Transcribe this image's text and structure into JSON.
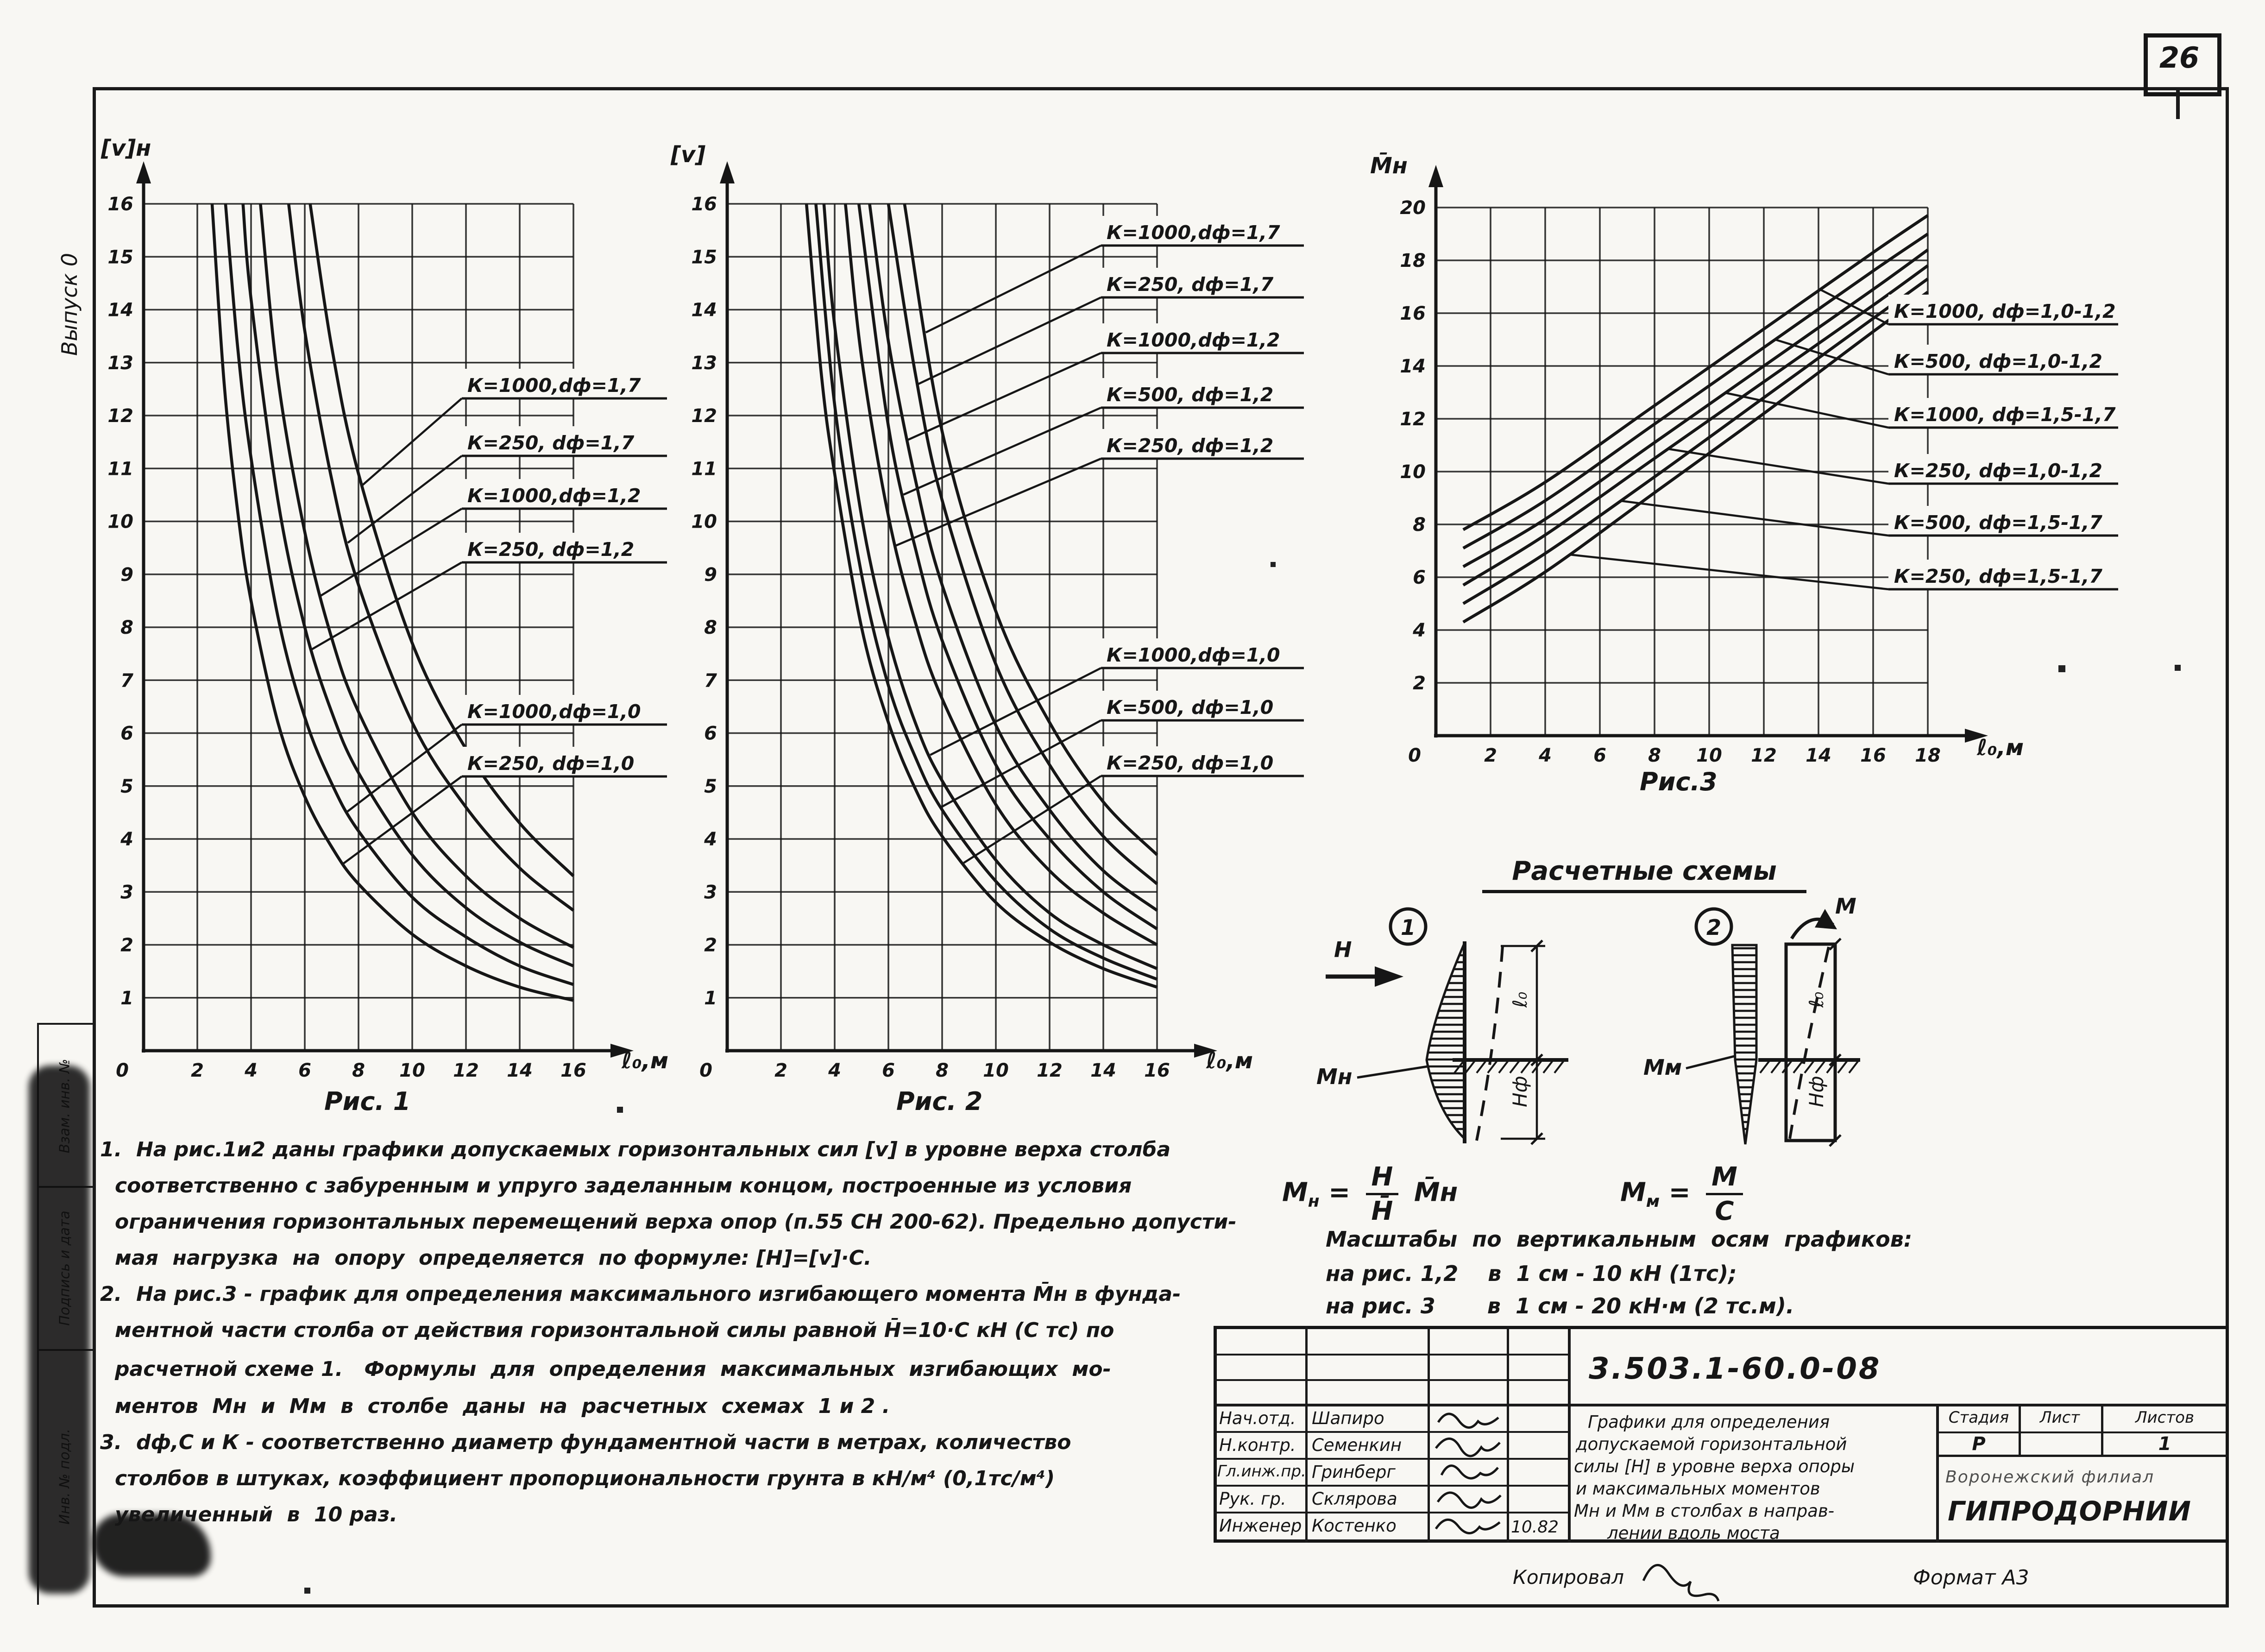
{
  "page": {
    "number": "26",
    "side_text": "Выпуск 0",
    "margin_labels": [
      "Взам. инв. №",
      "Подпись и дата",
      "Инв. № подл."
    ],
    "paper_color": "#f8f7f3",
    "ink_color": "#161616"
  },
  "chart_data": [
    {
      "id": "fig1",
      "type": "line",
      "caption": "Рис. 1",
      "ylabel": "[v]н",
      "xlabel": "ℓ₀,м",
      "xlim": [
        0,
        16
      ],
      "ylim": [
        0,
        16
      ],
      "xtick_step": 2,
      "ytick_step": 1,
      "grid": "on",
      "series": [
        {
          "name": "К=250, dф=1,0",
          "points": [
            [
              2.55,
              16
            ],
            [
              3,
              12.6
            ],
            [
              3.5,
              10.2
            ],
            [
              4,
              8.5
            ],
            [
              5,
              6.2
            ],
            [
              6,
              4.8
            ],
            [
              7,
              3.85
            ],
            [
              8,
              3.15
            ],
            [
              10,
              2.2
            ],
            [
              12,
              1.6
            ],
            [
              14,
              1.2
            ],
            [
              16,
              0.95
            ]
          ]
        },
        {
          "name": "К=1000, dф=1,0",
          "points": [
            [
              3.05,
              16
            ],
            [
              3.5,
              13.3
            ],
            [
              4,
              11.2
            ],
            [
              5,
              8.2
            ],
            [
              6,
              6.3
            ],
            [
              7,
              5.05
            ],
            [
              8,
              4.15
            ],
            [
              10,
              2.9
            ],
            [
              12,
              2.15
            ],
            [
              14,
              1.6
            ],
            [
              16,
              1.25
            ]
          ]
        },
        {
          "name": "К=250, dф=1,2",
          "points": [
            [
              3.7,
              16
            ],
            [
              4,
              14.2
            ],
            [
              5,
              10.4
            ],
            [
              6,
              8.0
            ],
            [
              7,
              6.4
            ],
            [
              8,
              5.25
            ],
            [
              10,
              3.7
            ],
            [
              12,
              2.7
            ],
            [
              14,
              2.05
            ],
            [
              16,
              1.6
            ]
          ]
        },
        {
          "name": "К=1000, dф=1,2",
          "points": [
            [
              4.35,
              16
            ],
            [
              5,
              12.7
            ],
            [
              6,
              9.8
            ],
            [
              7,
              7.8
            ],
            [
              8,
              6.4
            ],
            [
              10,
              4.5
            ],
            [
              12,
              3.3
            ],
            [
              14,
              2.5
            ],
            [
              16,
              1.95
            ]
          ]
        },
        {
          "name": "К=250, dф=1,7",
          "points": [
            [
              5.4,
              16
            ],
            [
              6,
              13.6
            ],
            [
              7,
              10.8
            ],
            [
              8,
              8.8
            ],
            [
              10,
              6.2
            ],
            [
              12,
              4.6
            ],
            [
              14,
              3.45
            ],
            [
              16,
              2.65
            ]
          ]
        },
        {
          "name": "К=1000, dф=1,7",
          "points": [
            [
              6.2,
              16
            ],
            [
              7,
              13.3
            ],
            [
              8,
              10.9
            ],
            [
              10,
              7.7
            ],
            [
              12,
              5.7
            ],
            [
              14,
              4.3
            ],
            [
              16,
              3.3
            ]
          ]
        }
      ],
      "labels": [
        {
          "text": "К=1000,dф=1,7",
          "series": 5
        },
        {
          "text": "К=250, dф=1,7",
          "series": 4
        },
        {
          "text": "К=1000,dф=1,2",
          "series": 3
        },
        {
          "text": "К=250, dф=1,2",
          "series": 2
        },
        {
          "text": "К=1000,dф=1,0",
          "series": 1
        },
        {
          "text": "К=250, dф=1,0",
          "series": 0
        }
      ]
    },
    {
      "id": "fig2",
      "type": "line",
      "caption": "Рис. 2",
      "ylabel": "[v]",
      "xlabel": "ℓ₀,м",
      "xlim": [
        0,
        16
      ],
      "ylim": [
        0,
        16
      ],
      "xtick_step": 2,
      "ytick_step": 1,
      "grid": "on",
      "series": [
        {
          "name": "К=250, dф=1,0",
          "points": [
            [
              2.95,
              16
            ],
            [
              3.5,
              12.8
            ],
            [
              4,
              10.9
            ],
            [
              5,
              8.0
            ],
            [
              6,
              6.2
            ],
            [
              7,
              4.95
            ],
            [
              8,
              4.05
            ],
            [
              10,
              2.8
            ],
            [
              12,
              2.05
            ],
            [
              14,
              1.55
            ],
            [
              16,
              1.2
            ]
          ]
        },
        {
          "name": "К=500, dф=1,0",
          "points": [
            [
              3.3,
              16
            ],
            [
              4,
              12.2
            ],
            [
              5,
              9.0
            ],
            [
              6,
              6.9
            ],
            [
              7,
              5.55
            ],
            [
              8,
              4.55
            ],
            [
              10,
              3.2
            ],
            [
              12,
              2.3
            ],
            [
              14,
              1.75
            ],
            [
              16,
              1.35
            ]
          ]
        },
        {
          "name": "К=1000, dф=1,0",
          "points": [
            [
              3.6,
              16
            ],
            [
              4,
              13.7
            ],
            [
              5,
              10.1
            ],
            [
              6,
              7.8
            ],
            [
              7,
              6.2
            ],
            [
              8,
              5.1
            ],
            [
              10,
              3.6
            ],
            [
              12,
              2.6
            ],
            [
              14,
              2.0
            ],
            [
              16,
              1.55
            ]
          ]
        },
        {
          "name": "К=250, dф=1,2",
          "points": [
            [
              4.4,
              16
            ],
            [
              5,
              13.1
            ],
            [
              6,
              10.1
            ],
            [
              7,
              8.1
            ],
            [
              8,
              6.65
            ],
            [
              10,
              4.65
            ],
            [
              12,
              3.4
            ],
            [
              14,
              2.6
            ],
            [
              16,
              2.0
            ]
          ]
        },
        {
          "name": "К=500, dф=1,2",
          "points": [
            [
              4.9,
              16
            ],
            [
              6,
              11.8
            ],
            [
              7,
              9.5
            ],
            [
              8,
              7.75
            ],
            [
              10,
              5.4
            ],
            [
              12,
              4.0
            ],
            [
              14,
              3.0
            ],
            [
              16,
              2.3
            ]
          ]
        },
        {
          "name": "К=1000, dф=1,2",
          "points": [
            [
              5.3,
              16
            ],
            [
              6,
              13.4
            ],
            [
              7,
              10.8
            ],
            [
              8,
              8.8
            ],
            [
              10,
              6.15
            ],
            [
              12,
              4.55
            ],
            [
              14,
              3.4
            ],
            [
              16,
              2.65
            ]
          ]
        },
        {
          "name": "К=250, dф=1,7",
          "points": [
            [
              6.0,
              16
            ],
            [
              7,
              12.8
            ],
            [
              8,
              10.4
            ],
            [
              10,
              7.3
            ],
            [
              12,
              5.4
            ],
            [
              14,
              4.05
            ],
            [
              16,
              3.15
            ]
          ]
        },
        {
          "name": "К=1000, dф=1,7",
          "points": [
            [
              6.6,
              16
            ],
            [
              8,
              11.7
            ],
            [
              10,
              8.3
            ],
            [
              12,
              6.2
            ],
            [
              14,
              4.7
            ],
            [
              16,
              3.7
            ]
          ]
        }
      ],
      "labels": [
        {
          "text": "К=1000,dф=1,7",
          "series": 7
        },
        {
          "text": "К=250, dф=1,7",
          "series": 6
        },
        {
          "text": "К=1000,dф=1,2",
          "series": 5
        },
        {
          "text": "К=500, dф=1,2",
          "series": 4
        },
        {
          "text": "К=250, dф=1,2",
          "series": 3
        },
        {
          "text": "К=1000,dф=1,0",
          "series": 2
        },
        {
          "text": "К=500, dф=1,0",
          "series": 1
        },
        {
          "text": "К=250, dф=1,0",
          "series": 0
        }
      ]
    },
    {
      "id": "fig3",
      "type": "line",
      "caption": "Рис.3",
      "ylabel": "М̄н",
      "xlabel": "ℓ₀,м",
      "xlim": [
        0,
        18
      ],
      "ylim": [
        0,
        20
      ],
      "xtick_step": 2,
      "ytick_step": 2,
      "grid": "on",
      "series": [
        {
          "name": "К=1000, dф=1,0-1,2",
          "points": [
            [
              1,
              7.8
            ],
            [
              4,
              9.6
            ],
            [
              8,
              12.5
            ],
            [
              12,
              15.4
            ],
            [
              16,
              18.3
            ],
            [
              18,
              19.7
            ]
          ]
        },
        {
          "name": "К=500, dф=1,0-1,2",
          "points": [
            [
              1,
              7.1
            ],
            [
              4,
              8.9
            ],
            [
              8,
              11.8
            ],
            [
              12,
              14.7
            ],
            [
              16,
              17.6
            ],
            [
              18,
              19.0
            ]
          ]
        },
        {
          "name": "К=1000, dф=1,5-1,7",
          "points": [
            [
              1,
              6.4
            ],
            [
              4,
              8.2
            ],
            [
              8,
              11.1
            ],
            [
              12,
              14.0
            ],
            [
              16,
              16.9
            ],
            [
              18,
              18.4
            ]
          ]
        },
        {
          "name": "К=250, dф=1,0-1,2",
          "points": [
            [
              1,
              5.7
            ],
            [
              4,
              7.6
            ],
            [
              8,
              10.5
            ],
            [
              12,
              13.4
            ],
            [
              16,
              16.3
            ],
            [
              18,
              17.8
            ]
          ]
        },
        {
          "name": "К=500, dф=1,5-1,7",
          "points": [
            [
              1,
              5.0
            ],
            [
              4,
              6.9
            ],
            [
              8,
              9.8
            ],
            [
              12,
              12.8
            ],
            [
              16,
              15.8
            ],
            [
              18,
              17.3
            ]
          ]
        },
        {
          "name": "К=250, dф=1,5-1,7",
          "points": [
            [
              1,
              4.3
            ],
            [
              4,
              6.2
            ],
            [
              8,
              9.2
            ],
            [
              12,
              12.2
            ],
            [
              16,
              15.3
            ],
            [
              18,
              16.8
            ]
          ]
        }
      ],
      "labels": [
        {
          "text": "К=1000, dф=1,0-1,2",
          "series": 0
        },
        {
          "text": "К=500, dф=1,0-1,2",
          "series": 1
        },
        {
          "text": "К=1000, dф=1,5-1,7",
          "series": 2
        },
        {
          "text": "К=250, dф=1,0-1,2",
          "series": 3
        },
        {
          "text": "К=500, dф=1,5-1,7",
          "series": 4
        },
        {
          "text": "К=250, dф=1,5-1,7",
          "series": 5
        }
      ]
    }
  ],
  "schemes": {
    "heading": "Расчетные  схемы",
    "s1": {
      "num": "1",
      "force": "Н",
      "moment": "Мн",
      "dim_top": "ℓ₀",
      "dim_bot": "Нф"
    },
    "s2": {
      "num": "2",
      "force": "М",
      "moment": "Мм",
      "dim_top": "ℓ₀",
      "dim_bot": "Нф"
    }
  },
  "formulas": {
    "f1": {
      "base": "М",
      "sub": "н",
      "eq": "=",
      "num": "Н",
      "den": "Н̄",
      "mult": "М̄н"
    },
    "f2": {
      "base": "М",
      "sub": "м",
      "eq": "=",
      "num": "М",
      "den": "С"
    }
  },
  "scales": {
    "title": "Масштабы  по  вертикальным  осям  графиков:",
    "rows": [
      "на рис. 1,2    в  1 см - 10 кН (1тс);",
      "на рис. 3       в  1 см - 20 кН·м (2 тс.м)."
    ]
  },
  "notes": {
    "lines": [
      "1.  На рис.1и2 даны графики допускаемых горизонтальных сил [v] в уровне верха столба",
      "соответственно с забуренным и упруго заделанным концом, построенные из условия",
      "ограничения горизонтальных перемещений верха опор (п.55 СН 200-62). Предельно допусти-",
      "мая  нагрузка  на  опору  определяется  по формуле: [Н]=[v]·С.",
      "2.  На рис.3 - график для определения максимального изгибающего момента М̄н в фунда-",
      "ментной части столба от действия горизонтальной силы равной Н̄=10·С кН (С тс) по",
      "расчетной схеме 1.   Формулы  для  определения  максимальных  изгибающих  мо-",
      "ментов  Мн  и  Мм  в  столбе  даны  на  расчетных  схемах  1 и 2 .",
      "3.  dф,С и К - соответственно диаметр фундаментной части в метрах, количество",
      "столбов в штуках, коэффициент пропорциональности грунта в кН/м⁴ (0,1тс/м⁴)",
      "увеличенный  в  10 раз."
    ]
  },
  "title_block": {
    "doc_number": "3.503.1-60.0-08",
    "stage_label": "Стадия",
    "sheet_label": "Лист",
    "sheets_label": "Листов",
    "stage_value": "Р",
    "sheet_value": "",
    "sheets_value": "1",
    "org_branch": "Воронежский филиал",
    "org_name": "ГИПРОДОРНИИ",
    "rows": [
      {
        "role": "Нач.отд.",
        "name": "Шапиро",
        "date": ""
      },
      {
        "role": "Н.контр.",
        "name": "Семенкин",
        "date": ""
      },
      {
        "role": "Гл.инж.пр.",
        "name": "Гринберг",
        "date": ""
      },
      {
        "role": "Рук. гр.",
        "name": "Склярова",
        "date": ""
      },
      {
        "role": "Инженер",
        "name": "Костенко",
        "date": "10.82"
      }
    ],
    "title_lines": [
      "Графики для определения",
      "допускаемой горизонтальной",
      "силы [Н] в уровне верха опоры",
      "и максимальных моментов",
      "Мн и Мм в столбах в направ-",
      "лении вдоль моста"
    ]
  },
  "footer": {
    "copied": "Копировал",
    "format": "Формат А3"
  }
}
